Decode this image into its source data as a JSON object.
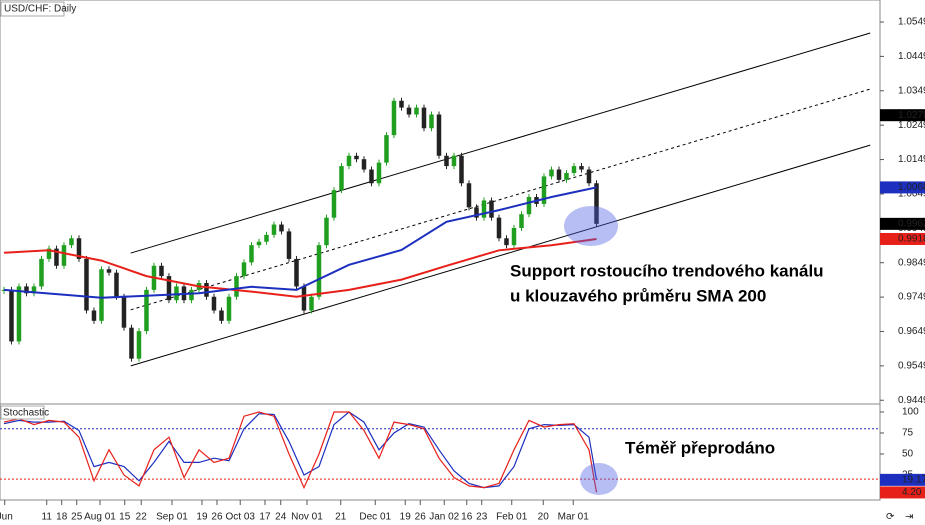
{
  "chart_data": {
    "type": "candlestick",
    "title": "USD/CHF: Daily",
    "up_color": "#1f9e1f",
    "down_color": "#222222",
    "close": [
      0.977,
      0.962,
      0.978,
      0.976,
      0.978,
      0.986,
      0.989,
      0.984,
      0.99,
      0.992,
      0.986,
      0.971,
      0.968,
      0.983,
      0.982,
      0.975,
      0.966,
      0.957,
      0.965,
      0.977,
      0.984,
      0.981,
      0.974,
      0.978,
      0.974,
      0.977,
      0.979,
      0.975,
      0.971,
      0.968,
      0.975,
      0.981,
      0.985,
      0.99,
      0.991,
      0.993,
      0.996,
      0.994,
      0.986,
      0.978,
      0.971,
      0.975,
      0.99,
      0.998,
      1.006,
      1.013,
      1.016,
      1.015,
      1.012,
      1.008,
      1.014,
      1.022,
      1.032,
      1.03,
      1.028,
      1.03,
      1.024,
      1.028,
      1.016,
      1.013,
      1.016,
      1.008,
      1.001,
      0.998,
      1.003,
      0.998,
      0.992,
      0.99,
      0.995,
      0.999,
      1.004,
      1.002,
      1.01,
      1.012,
      1.009,
      1.011,
      1.013,
      1.012,
      1.008,
      0.9962
    ],
    "xlim": [
      -0.53,
      116.8
    ],
    "xticks": [
      {
        "value": 0.1,
        "label": "Jun"
      },
      {
        "value": 5.7,
        "label": "11"
      },
      {
        "value": 7.7,
        "label": "18"
      },
      {
        "value": 9.7,
        "label": "25"
      },
      {
        "value": 12.8,
        "label": "Aug 01"
      },
      {
        "value": 16.1,
        "label": "15"
      },
      {
        "value": 18.3,
        "label": "22"
      },
      {
        "value": 22.4,
        "label": "Sep 01"
      },
      {
        "value": 26.4,
        "label": "19"
      },
      {
        "value": 28.4,
        "label": "26"
      },
      {
        "value": 31.5,
        "label": "Oct 03"
      },
      {
        "value": 34.8,
        "label": "17"
      },
      {
        "value": 36.9,
        "label": "24"
      },
      {
        "value": 40.4,
        "label": "Nov 01"
      },
      {
        "value": 44.9,
        "label": "21"
      },
      {
        "value": 49.5,
        "label": "Dec 01"
      },
      {
        "value": 53.5,
        "label": "19"
      },
      {
        "value": 55.5,
        "label": "26"
      },
      {
        "value": 58.7,
        "label": "Jan 02"
      },
      {
        "value": 61.7,
        "label": "16"
      },
      {
        "value": 63.7,
        "label": "23"
      },
      {
        "value": 67.7,
        "label": "Feb 01"
      },
      {
        "value": 71.9,
        "label": "20"
      },
      {
        "value": 75.9,
        "label": "Mar 01"
      }
    ],
    "ylim": [
      0.9441,
      1.0613
    ],
    "yticks": [
      1.0549,
      1.0449,
      1.0349,
      1.0249,
      1.0149,
      1.0049,
      0.9949,
      0.9849,
      0.9749,
      0.9649,
      0.9549,
      0.9449
    ],
    "overlays": [
      {
        "color": "#e8201a",
        "x": [
          0,
          6,
          13,
          19,
          26,
          33,
          39,
          46,
          53,
          59,
          66,
          73,
          79
        ],
        "values": [
          0.9878,
          0.9885,
          0.9855,
          0.981,
          0.978,
          0.9765,
          0.975,
          0.977,
          0.98,
          0.984,
          0.9885,
          0.99,
          0.9918
        ]
      },
      {
        "color": "#1c2fbf",
        "x": [
          0,
          13,
          19,
          26,
          33,
          39,
          46,
          53,
          59,
          66,
          73,
          79
        ],
        "values": [
          0.977,
          0.9747,
          0.9753,
          0.976,
          0.9779,
          0.977,
          0.9843,
          0.9886,
          0.9968,
          1.0002,
          1.004,
          1.0068
        ]
      }
    ],
    "channel": [
      {
        "color": "#000000",
        "dashed": false,
        "x": [
          16.9,
          115.5
        ],
        "values": [
          0.9877,
          1.0517
        ]
      },
      {
        "color": "#000000",
        "dashed": true,
        "x": [
          16.9,
          115.5
        ],
        "values": [
          0.9712,
          1.0354
        ]
      },
      {
        "color": "#000000",
        "dashed": false,
        "x": [
          16.9,
          115.5
        ],
        "values": [
          0.9549,
          1.0191
        ]
      }
    ],
    "price_labels": [
      {
        "value": 1.0278,
        "color": "#000000"
      },
      {
        "value": 1.0068,
        "color": "#1c2fbf"
      },
      {
        "value": 0.9962,
        "color": "#000000"
      },
      {
        "value": 0.9918,
        "color": "#e8201a"
      }
    ],
    "annotations": [
      "Support rostoucího trendového kanálu",
      "u klouzavého průměru SMA 200",
      "Téměř přeprodáno"
    ],
    "stochastic": {
      "title": "Stochastic",
      "ylim": [
        -4.8,
        108.3
      ],
      "yticks": [
        100,
        75,
        50,
        25
      ],
      "levels": [
        {
          "value": 80,
          "color": "#1c2fbf"
        },
        {
          "value": 20,
          "color": "#e8201a"
        }
      ],
      "series": [
        {
          "color": "#1c2fbf",
          "x": [
            0,
            2,
            4,
            6,
            8,
            10,
            12,
            14,
            16,
            18,
            20,
            22,
            24,
            26,
            28,
            30,
            32,
            34,
            36,
            38,
            40,
            42,
            44,
            46,
            48,
            50,
            52,
            54,
            56,
            58,
            60,
            62,
            64,
            66,
            68,
            70,
            72,
            74,
            76,
            78,
            79
          ],
          "values": [
            86,
            90,
            88,
            88,
            89,
            78,
            35,
            40,
            35,
            18,
            40,
            65,
            40,
            40,
            45,
            42,
            80,
            98,
            97,
            65,
            25,
            35,
            85,
            100,
            88,
            55,
            75,
            86,
            82,
            55,
            30,
            15,
            10,
            12,
            35,
            80,
            85,
            84,
            85,
            70,
            19.17
          ]
        },
        {
          "color": "#e8201a",
          "x": [
            0,
            2,
            4,
            6,
            8,
            10,
            12,
            14,
            16,
            18,
            20,
            22,
            24,
            26,
            28,
            30,
            32,
            34,
            36,
            38,
            40,
            42,
            44,
            46,
            48,
            50,
            52,
            54,
            56,
            58,
            60,
            62,
            64,
            66,
            68,
            70,
            72,
            74,
            76,
            78,
            79
          ],
          "values": [
            88,
            92,
            85,
            90,
            88,
            70,
            18,
            55,
            25,
            12,
            55,
            70,
            22,
            55,
            40,
            45,
            95,
            100,
            95,
            50,
            10,
            50,
            100,
            100,
            78,
            45,
            88,
            85,
            80,
            45,
            22,
            12,
            10,
            15,
            55,
            90,
            82,
            85,
            86,
            55,
            4.2
          ]
        }
      ],
      "current": [
        {
          "value": 19.17,
          "color": "#1c2fbf"
        },
        {
          "value": 4.2,
          "label": "4.20",
          "color": "#e8201a"
        }
      ]
    }
  }
}
